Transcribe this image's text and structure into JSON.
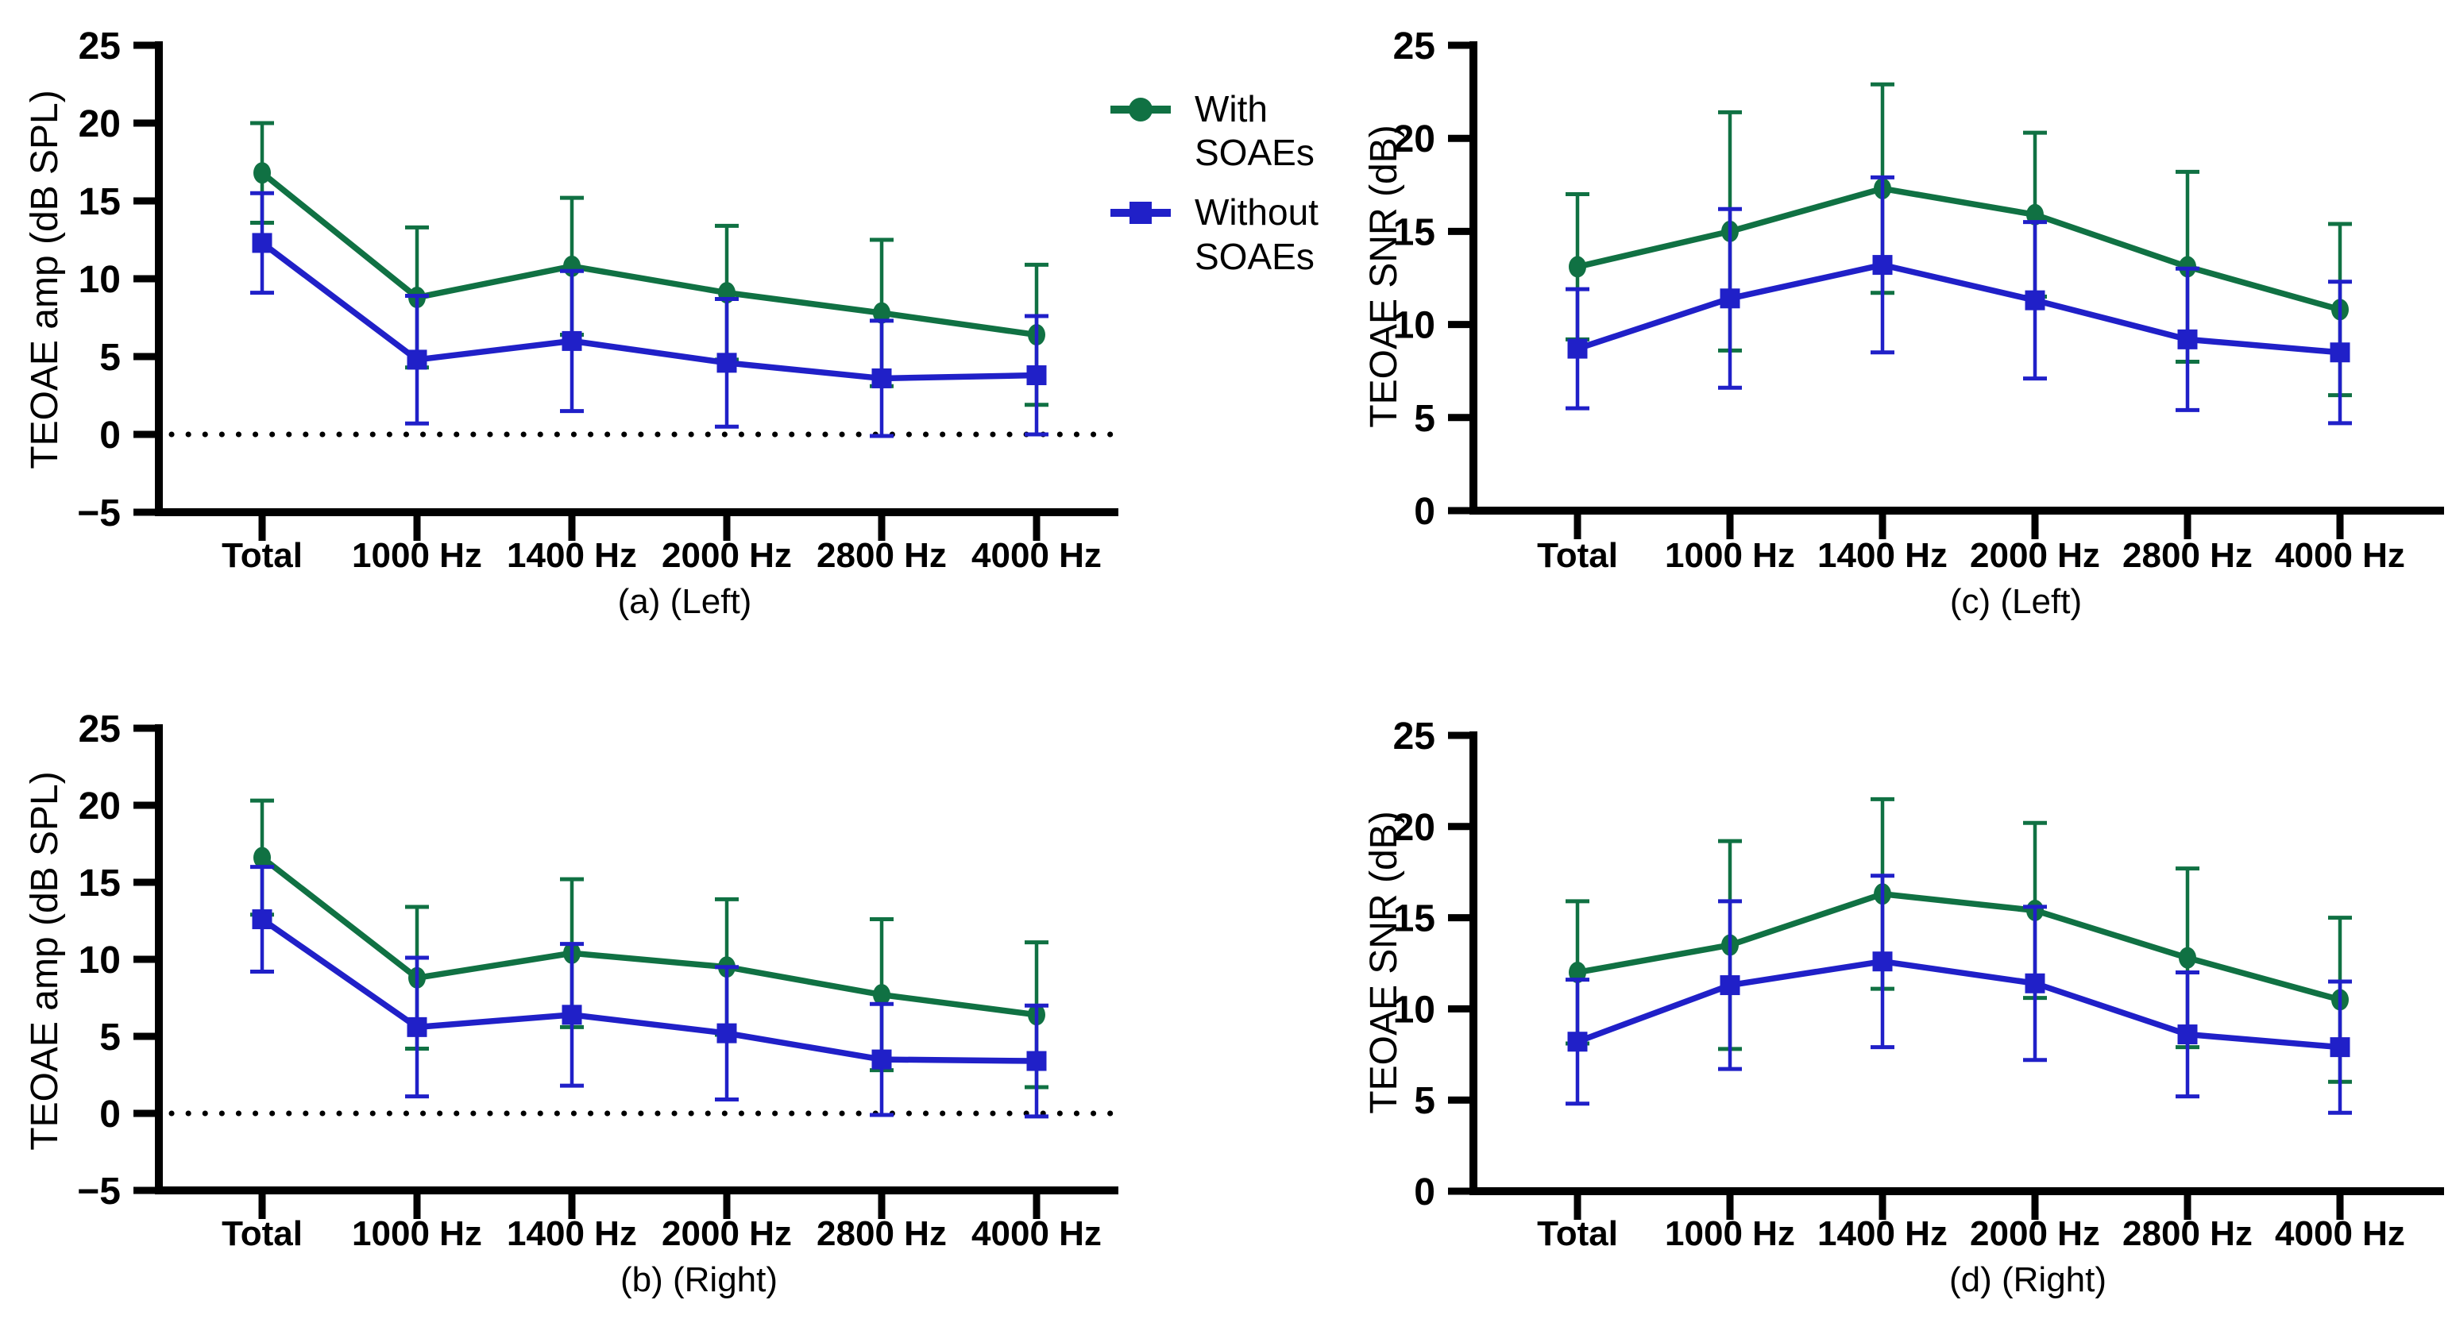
{
  "figure": {
    "background": "#FFFFFF"
  },
  "colors": {
    "with_soaes": "#107143",
    "without_soaes": "#2020C8",
    "axis": "#000000"
  },
  "legend": {
    "position": "top center, between panels (a) and (c)",
    "items": [
      {
        "label": "With SOAEs",
        "series": "with_soaes",
        "marker": "circle"
      },
      {
        "label": "Without SOAEs",
        "series": "without_soaes",
        "marker": "square"
      }
    ]
  },
  "chart_data": [
    {
      "type": "line",
      "panel": "a",
      "subtitle": "(a) (Left)",
      "ylabel": "TEOAE amp (dB SPL)",
      "xlabel": "",
      "ylim": [
        -5,
        25
      ],
      "ytick_step": 5,
      "grid": false,
      "zero_line_dotted": true,
      "error_bars": "plus-minus SD, capped",
      "categories": [
        "Total",
        "1000 Hz",
        "1400 Hz",
        "2000 Hz",
        "2800 Hz",
        "4000 Hz"
      ],
      "series": [
        {
          "name": "With SOAEs",
          "color": "with_soaes",
          "marker": "circle",
          "values": [
            16.8,
            8.8,
            10.8,
            9.1,
            7.8,
            6.4
          ],
          "sd": [
            3.2,
            4.5,
            4.4,
            4.3,
            4.7,
            4.5
          ]
        },
        {
          "name": "Without SOAEs",
          "color": "without_soaes",
          "marker": "square",
          "values": [
            12.3,
            4.8,
            6.0,
            4.6,
            3.6,
            3.8
          ],
          "sd": [
            3.2,
            4.1,
            4.5,
            4.1,
            3.7,
            3.8
          ]
        }
      ]
    },
    {
      "type": "line",
      "panel": "b",
      "subtitle": "(b) (Right)",
      "ylabel": "TEOAE amp (dB SPL)",
      "xlabel": "",
      "ylim": [
        -5,
        25
      ],
      "ytick_step": 5,
      "grid": false,
      "zero_line_dotted": true,
      "error_bars": "plus-minus SD, capped",
      "categories": [
        "Total",
        "1000 Hz",
        "1400 Hz",
        "2000 Hz",
        "2800 Hz",
        "4000 Hz"
      ],
      "series": [
        {
          "name": "With SOAEs",
          "color": "with_soaes",
          "marker": "circle",
          "values": [
            16.6,
            8.8,
            10.4,
            9.5,
            7.7,
            6.4
          ],
          "sd": [
            3.7,
            4.6,
            4.8,
            4.4,
            4.9,
            4.7
          ]
        },
        {
          "name": "Without SOAEs",
          "color": "without_soaes",
          "marker": "square",
          "values": [
            12.6,
            5.6,
            6.4,
            5.2,
            3.5,
            3.4
          ],
          "sd": [
            3.4,
            4.5,
            4.6,
            4.3,
            3.6,
            3.6
          ]
        }
      ]
    },
    {
      "type": "line",
      "panel": "c",
      "subtitle": "(c) (Left)",
      "ylabel": "TEOAE SNR (dB)",
      "xlabel": "",
      "ylim": [
        0,
        25
      ],
      "ytick_step": 5,
      "grid": false,
      "zero_line_dotted": false,
      "error_bars": "plus-minus SD, capped",
      "categories": [
        "Total",
        "1000 Hz",
        "1400 Hz",
        "2000 Hz",
        "2800 Hz",
        "4000 Hz"
      ],
      "series": [
        {
          "name": "With SOAEs",
          "color": "with_soaes",
          "marker": "circle",
          "values": [
            13.1,
            15.0,
            17.3,
            15.9,
            13.1,
            10.8
          ],
          "sd": [
            3.9,
            6.4,
            5.6,
            4.4,
            5.1,
            4.6
          ]
        },
        {
          "name": "Without SOAEs",
          "color": "without_soaes",
          "marker": "square",
          "values": [
            8.7,
            11.4,
            13.2,
            11.3,
            9.2,
            8.5
          ],
          "sd": [
            3.2,
            4.8,
            4.7,
            4.2,
            3.8,
            3.8
          ]
        }
      ]
    },
    {
      "type": "line",
      "panel": "d",
      "subtitle": "(d) (Right)",
      "ylabel": "TEOAE SNR (dB)",
      "xlabel": "",
      "ylim": [
        0,
        25
      ],
      "ytick_step": 5,
      "grid": false,
      "zero_line_dotted": false,
      "error_bars": "plus-minus SD, capped",
      "categories": [
        "Total",
        "1000 Hz",
        "1400 Hz",
        "2000 Hz",
        "2800 Hz",
        "4000 Hz"
      ],
      "series": [
        {
          "name": "With SOAEs",
          "color": "with_soaes",
          "marker": "circle",
          "values": [
            12.0,
            13.5,
            16.3,
            15.4,
            12.8,
            10.5
          ],
          "sd": [
            3.9,
            5.7,
            5.2,
            4.8,
            4.9,
            4.5
          ]
        },
        {
          "name": "Without SOAEs",
          "color": "without_soaes",
          "marker": "square",
          "values": [
            8.2,
            11.3,
            12.6,
            11.4,
            8.6,
            7.9
          ],
          "sd": [
            3.4,
            4.6,
            4.7,
            4.2,
            3.4,
            3.6
          ]
        }
      ]
    }
  ]
}
